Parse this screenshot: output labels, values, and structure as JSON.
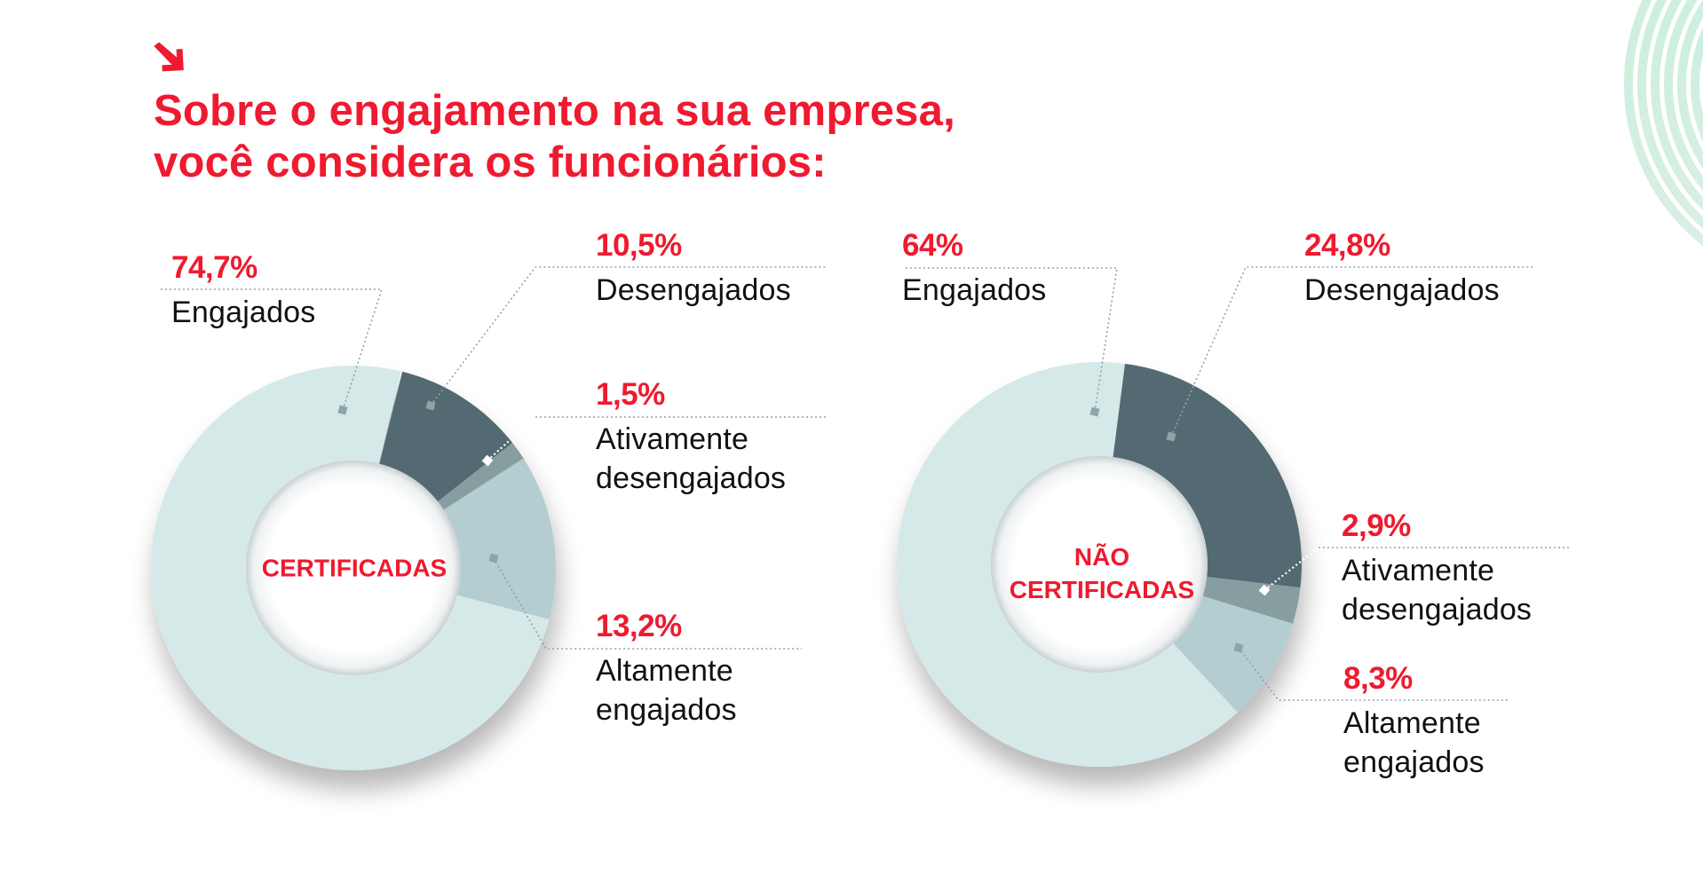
{
  "header": {
    "title_line1": "Sobre o engajamento na sua empresa,",
    "title_line2": "você considera os funcionários:",
    "icon": "arrow-down-right-icon"
  },
  "colors": {
    "accent": "#ef1a2f",
    "text": "#111111",
    "engajados": "#d5e9e8",
    "desengajados": "#536a73",
    "ativamente_desengajados": "#879ea1",
    "altamente_engajados": "#b3cdd1",
    "leader": "#8fa4a8",
    "deco_arcs": "#cfeee0"
  },
  "charts": [
    {
      "id": "certificadas",
      "center_label": [
        "CERTIFICADAS"
      ],
      "labels": [
        {
          "pct": "74,7%",
          "name": [
            "Engajados"
          ]
        },
        {
          "pct": "10,5%",
          "name": [
            "Desengajados"
          ]
        },
        {
          "pct": "1,5%",
          "name": [
            "Ativamente",
            "desengajados"
          ]
        },
        {
          "pct": "13,2%",
          "name": [
            "Altamente",
            "engajados"
          ]
        }
      ]
    },
    {
      "id": "nao-certificadas",
      "center_label": [
        "NÃO",
        "CERTIFICADAS"
      ],
      "labels": [
        {
          "pct": "64%",
          "name": [
            "Engajados"
          ]
        },
        {
          "pct": "24,8%",
          "name": [
            "Desengajados"
          ]
        },
        {
          "pct": "2,9%",
          "name": [
            "Ativamente",
            "desengajados"
          ]
        },
        {
          "pct": "8,3%",
          "name": [
            "Altamente",
            "engajados"
          ]
        }
      ]
    }
  ],
  "chart_data": [
    {
      "type": "pie",
      "variant": "donut",
      "title": "Sobre o engajamento na sua empresa, você considera os funcionários:",
      "subtitle": "CERTIFICADAS",
      "categories": [
        "Engajados",
        "Desengajados",
        "Ativamente desengajados",
        "Altamente engajados"
      ],
      "values": [
        74.7,
        10.5,
        1.5,
        13.2
      ],
      "unit": "%",
      "legend_position": "callouts"
    },
    {
      "type": "pie",
      "variant": "donut",
      "title": "Sobre o engajamento na sua empresa, você considera os funcionários:",
      "subtitle": "NÃO CERTIFICADAS",
      "categories": [
        "Engajados",
        "Desengajados",
        "Ativamente desengajados",
        "Altamente engajados"
      ],
      "values": [
        64,
        24.8,
        2.9,
        8.3
      ],
      "unit": "%",
      "legend_position": "callouts"
    }
  ]
}
